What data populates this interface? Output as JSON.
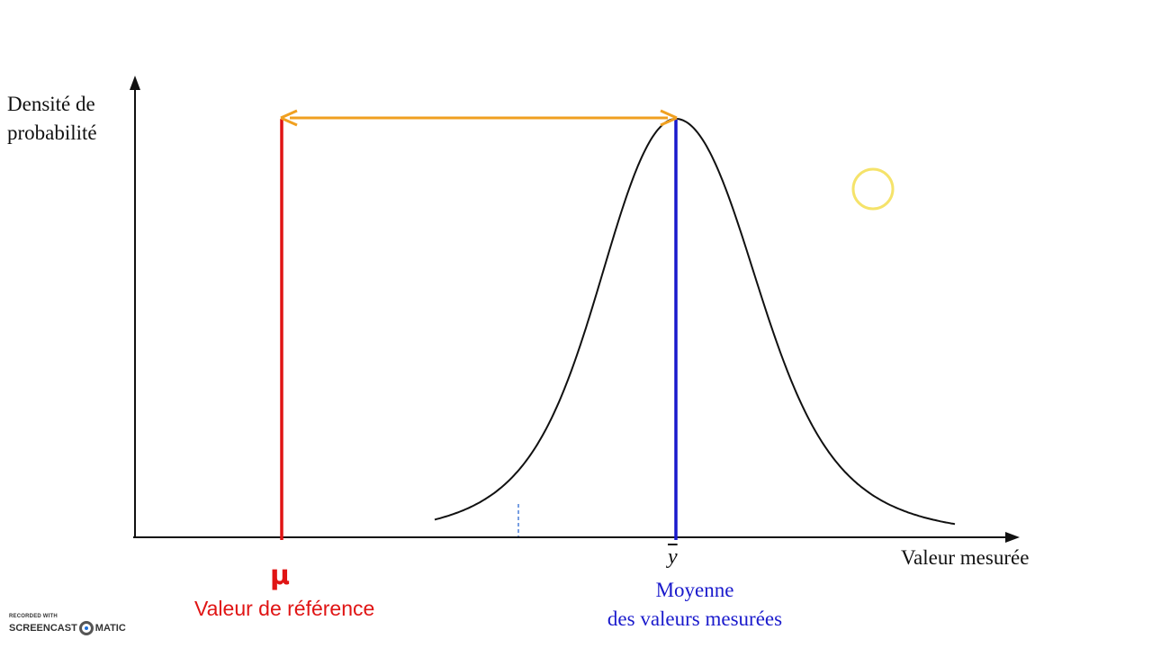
{
  "axes": {
    "y_label_line1": "Densité de",
    "y_label_line2": "probabilité",
    "x_label": "Valeur mesurée"
  },
  "reference": {
    "symbol": "μ",
    "caption": "Valeur de référence",
    "color": "#e01414"
  },
  "mean": {
    "symbol": "y",
    "caption_line1": "Moyenne",
    "caption_line2": "des  valeurs mesurées",
    "color": "#1a1acc"
  },
  "bias_arrow": {
    "color": "#f0a020"
  },
  "curve": {
    "shape": "gaussian-like bell curve",
    "color": "#111111"
  },
  "cursor": {
    "color": "#f5e36a"
  },
  "watermark": {
    "line1": "RECORDED WITH",
    "line2_left": "SCREENCAST",
    "line2_right": "MATIC"
  }
}
